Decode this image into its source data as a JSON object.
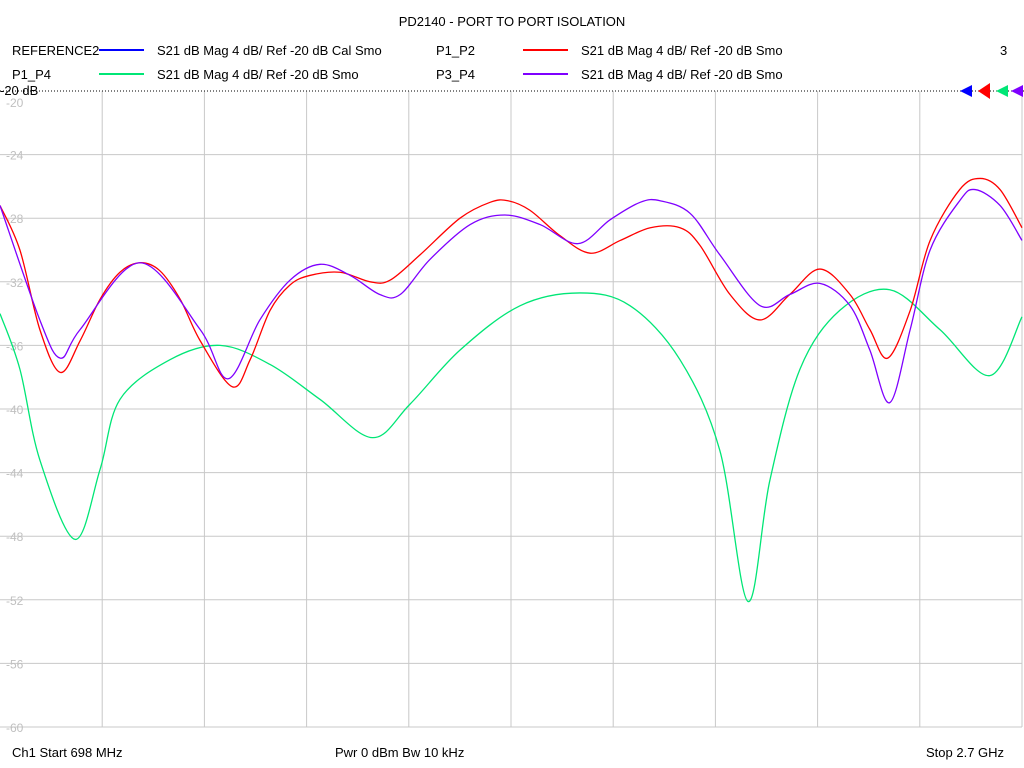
{
  "chart_data": {
    "type": "line",
    "title": "PD2140 - PORT TO PORT ISOLATION",
    "xlim": [
      698,
      2700
    ],
    "ylim": [
      -60,
      -20
    ],
    "x_unit": "MHz",
    "y_ticks": [
      -20,
      -24,
      -28,
      -32,
      -36,
      -40,
      -44,
      -48,
      -52,
      -56,
      -60
    ],
    "x_grid_divisions": 10,
    "grid": true,
    "reference_label": "-20 dB",
    "channel_number": "3",
    "legend": [
      {
        "name": "REFERENCE2",
        "desc": "S21  dB Mag  4 dB/ Ref -20 dB  Cal Smo",
        "color": "#0000ff"
      },
      {
        "name": "P1_P2",
        "desc": "S21  dB Mag  4 dB/ Ref -20 dB  Smo",
        "color": "#ff0000"
      },
      {
        "name": "P1_P4",
        "desc": "S21  dB Mag  4 dB/ Ref -20 dB  Smo",
        "color": "#00e676"
      },
      {
        "name": "P3_P4",
        "desc": "S21  dB Mag  4 dB/ Ref -20 dB  Smo",
        "color": "#7f00ff"
      }
    ],
    "series": [
      {
        "name": "P1_P4",
        "color": "#00e676",
        "x": [
          698,
          737,
          776,
          845,
          894,
          933,
          1031,
          1129,
          1227,
          1325,
          1427,
          1501,
          1599,
          1717,
          1834,
          1932,
          2030,
          2108,
          2163,
          2206,
          2265,
          2343,
          2441,
          2539,
          2637,
          2700
        ],
        "y": [
          -34.0,
          -37.5,
          -43.2,
          -48.2,
          -43.8,
          -39.4,
          -36.9,
          -36.0,
          -37.2,
          -39.4,
          -41.8,
          -39.7,
          -36.3,
          -33.5,
          -32.7,
          -33.5,
          -36.9,
          -42.6,
          -52.1,
          -44.5,
          -37.5,
          -33.8,
          -32.5,
          -35.0,
          -37.9,
          -34.2
        ]
      },
      {
        "name": "P1_P2",
        "color": "#ff0000",
        "x": [
          698,
          737,
          776,
          816,
          855,
          894,
          933,
          972,
          1011,
          1051,
          1090,
          1153,
          1188,
          1227,
          1266,
          1305,
          1364,
          1423,
          1462,
          1521,
          1599,
          1658,
          1693,
          1736,
          1795,
          1854,
          1913,
          1972,
          2030,
          2069,
          2128,
          2187,
          2245,
          2304,
          2363,
          2402,
          2437,
          2481,
          2520,
          2578,
          2618,
          2657,
          2700
        ],
        "y": [
          -27.2,
          -30.0,
          -35.0,
          -37.7,
          -35.7,
          -33.1,
          -31.4,
          -30.8,
          -31.3,
          -33.1,
          -35.7,
          -38.6,
          -36.9,
          -33.8,
          -32.2,
          -31.6,
          -31.4,
          -32.0,
          -31.9,
          -30.3,
          -28.0,
          -27.0,
          -26.9,
          -27.5,
          -29.1,
          -30.2,
          -29.4,
          -28.6,
          -28.6,
          -29.7,
          -32.8,
          -34.4,
          -32.8,
          -31.2,
          -32.8,
          -35.0,
          -36.8,
          -33.8,
          -29.4,
          -26.2,
          -25.5,
          -26.2,
          -28.6
        ]
      },
      {
        "name": "P3_P4",
        "color": "#7f00ff",
        "x": [
          698,
          776,
          816,
          855,
          972,
          1090,
          1145,
          1207,
          1266,
          1325,
          1384,
          1442,
          1482,
          1540,
          1619,
          1687,
          1756,
          1830,
          1893,
          1952,
          1991,
          2050,
          2108,
          2187,
          2245,
          2304,
          2363,
          2402,
          2441,
          2481,
          2520,
          2578,
          2608,
          2657,
          2700
        ],
        "y": [
          -27.2,
          -34.4,
          -36.8,
          -35.0,
          -30.8,
          -35.0,
          -38.1,
          -34.4,
          -31.9,
          -30.9,
          -31.6,
          -32.8,
          -32.8,
          -30.6,
          -28.4,
          -27.8,
          -28.4,
          -29.6,
          -28.1,
          -27.0,
          -26.9,
          -27.7,
          -30.3,
          -33.5,
          -32.8,
          -32.1,
          -33.5,
          -36.3,
          -39.6,
          -35.0,
          -30.0,
          -26.9,
          -26.2,
          -27.2,
          -29.4
        ]
      }
    ]
  },
  "footer": {
    "left": "Ch1  Start  698 MHz",
    "center": "Pwr  0 dBm  Bw  10 kHz",
    "right": "Stop  2.7 GHz"
  }
}
